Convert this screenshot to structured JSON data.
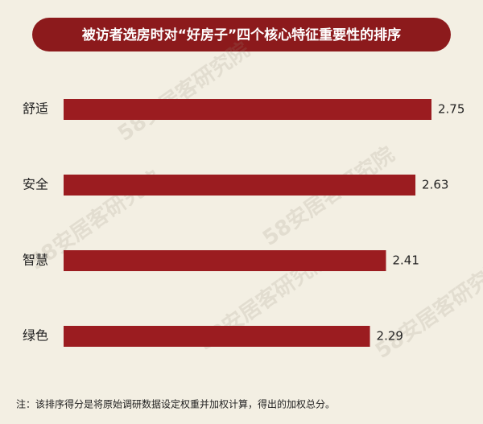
{
  "chart_data": {
    "type": "bar",
    "orientation": "horizontal",
    "title": "被访者选房时对“好房子”四个核心特征重要性的排序",
    "categories": [
      "舒适",
      "安全",
      "智慧",
      "绿色"
    ],
    "values": [
      2.75,
      2.63,
      2.41,
      2.29
    ],
    "color": "#9b1c20",
    "watermark": "58安居客研究院",
    "note": "注：该排序得分是将原始调研数据设定权重并加权计算，得出的加权总分。"
  }
}
